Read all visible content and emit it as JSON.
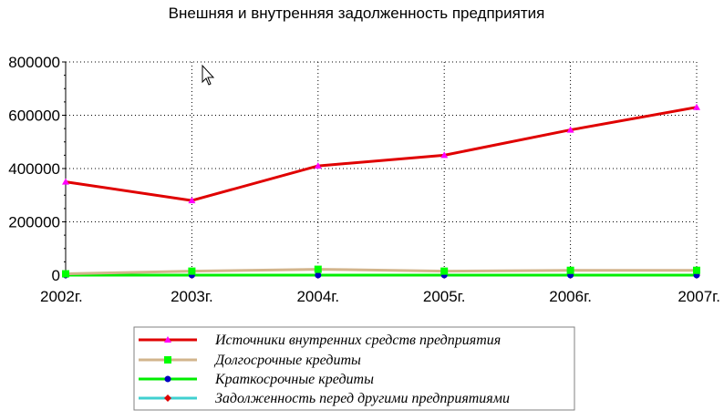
{
  "chart_data": {
    "type": "line",
    "title": "Внешняя и внутренняя задолженность предприятия",
    "xlabel": "",
    "ylabel": "",
    "categories": [
      "2002г.",
      "2003г.",
      "2004г.",
      "2005г.",
      "2006г.",
      "2007г."
    ],
    "ylim": [
      0,
      800000
    ],
    "y_ticks": [
      0,
      200000,
      400000,
      600000,
      800000
    ],
    "y_tick_labels": [
      "0",
      "200000",
      "400000",
      "600000",
      "800000"
    ],
    "grid": true,
    "legend_position": "bottom",
    "series": [
      {
        "name": "Источники внутренних средств предприятия",
        "values": [
          350000,
          280000,
          410000,
          450000,
          545000,
          630000
        ],
        "color": "#e00000",
        "marker": "triangle",
        "marker_color": "#ff00ff"
      },
      {
        "name": "Долгосрочные кредиты",
        "values": [
          5000,
          15000,
          22000,
          15000,
          18000,
          18000
        ],
        "color": "#d2b48c",
        "marker": "square",
        "marker_color": "#00ff00"
      },
      {
        "name": "Краткосрочные кредиты",
        "values": [
          0,
          0,
          0,
          0,
          0,
          0
        ],
        "color": "#00ee00",
        "marker": "circle",
        "marker_color": "#0000c0"
      },
      {
        "name": "Задолженность перед другими предприятиями",
        "values": [
          0,
          0,
          0,
          0,
          0,
          0
        ],
        "color": "#40d0d0",
        "marker": "diamond",
        "marker_color": "#e00000"
      }
    ]
  },
  "icons": {
    "cursor": "mouse-pointer-icon"
  }
}
